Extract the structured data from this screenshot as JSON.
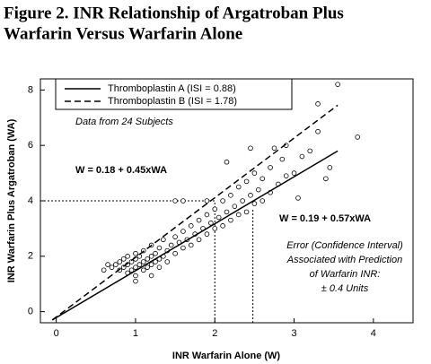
{
  "chart_data": {
    "type": "scatter",
    "title_lines": [
      "Figure 2. INR Relationship of Argatroban Plus",
      "Warfarin Versus Warfarin Alone"
    ],
    "x_label": "INR Warfarin Alone (W)",
    "y_label": "INR Warfarin Plus Argatroban (WA)",
    "xlim": [
      -0.2,
      4.5
    ],
    "ylim": [
      -0.4,
      8.4
    ],
    "xticks": [
      0,
      1,
      2,
      3,
      4
    ],
    "yticks": [
      0,
      2,
      4,
      6,
      8
    ],
    "series": [
      {
        "name": "Thromboplastin A (ISI = 0.88)",
        "style": "solid",
        "color": "#000000",
        "x": [
          -0.05,
          3.55
        ],
        "values": [
          -0.3,
          5.8
        ]
      },
      {
        "name": "Thromboplastin B (ISI = 1.78)",
        "style": "dashed",
        "color": "#000000",
        "x": [
          -0.05,
          3.55
        ],
        "values": [
          -0.3,
          7.45
        ]
      }
    ],
    "reference_lines": [
      {
        "x": [
          -0.2,
          2.0
        ],
        "values": [
          4,
          4
        ]
      },
      {
        "x": [
          2.0,
          2.0
        ],
        "values": [
          -0.4,
          4
        ]
      },
      {
        "x": [
          2.48,
          2.48
        ],
        "values": [
          -0.4,
          3.7
        ]
      }
    ],
    "scatter": {
      "x": [
        0.7,
        0.75,
        0.8,
        0.8,
        0.85,
        0.85,
        0.9,
        0.9,
        0.9,
        0.95,
        0.95,
        1.0,
        1.0,
        1.0,
        1.0,
        1.05,
        1.05,
        1.1,
        1.1,
        1.1,
        1.15,
        1.15,
        1.2,
        1.2,
        1.2,
        1.25,
        1.25,
        1.3,
        1.3,
        1.3,
        1.35,
        1.35,
        1.4,
        1.4,
        1.45,
        1.5,
        1.5,
        1.55,
        1.6,
        1.6,
        1.65,
        1.7,
        1.7,
        1.75,
        1.8,
        1.8,
        1.85,
        1.9,
        1.9,
        1.95,
        2.0,
        2.0,
        2.05,
        2.1,
        2.1,
        2.15,
        2.2,
        2.2,
        2.25,
        2.3,
        2.3,
        2.35,
        2.4,
        2.4,
        2.45,
        2.5,
        2.5,
        2.55,
        2.6,
        2.6,
        2.7,
        2.7,
        2.75,
        2.8,
        2.85,
        2.9,
        2.9,
        3.0,
        3.05,
        3.1,
        3.2,
        3.3,
        3.3,
        3.4,
        3.45,
        3.55,
        3.8,
        0.6,
        0.65,
        1.9,
        1.5,
        1.6,
        2.15,
        2.45,
        1.0,
        1.2
      ],
      "values": [
        1.6,
        1.7,
        1.5,
        1.8,
        1.6,
        1.9,
        1.4,
        1.7,
        2.0,
        1.5,
        1.8,
        1.6,
        1.9,
        2.1,
        1.3,
        1.7,
        2.0,
        1.5,
        1.8,
        2.2,
        1.6,
        1.9,
        1.7,
        2.0,
        2.4,
        1.8,
        2.1,
        1.9,
        2.3,
        1.6,
        2.0,
        2.6,
        2.2,
        1.8,
        2.4,
        2.1,
        2.7,
        2.5,
        2.3,
        2.9,
        2.6,
        3.1,
        2.4,
        2.8,
        3.3,
        2.6,
        3.0,
        3.5,
        2.8,
        3.2,
        3.7,
        3.0,
        3.4,
        4.0,
        3.1,
        3.6,
        4.2,
        3.3,
        3.8,
        4.5,
        3.5,
        4.0,
        4.7,
        3.6,
        4.2,
        5.0,
        3.9,
        4.4,
        4.8,
        4.0,
        5.2,
        4.3,
        5.9,
        4.6,
        5.5,
        4.9,
        6.0,
        5.0,
        4.1,
        5.6,
        5.8,
        6.5,
        7.5,
        4.8,
        5.2,
        8.2,
        6.3,
        1.5,
        1.7,
        4.0,
        4.0,
        4.0,
        5.4,
        5.9,
        1.1,
        1.3
      ]
    },
    "annotations": [
      "Data from 24 Subjects",
      "W = 0.18 + 0.45xWA",
      "W = 0.19 + 0.57xWA",
      "Error (Confidence Interval)",
      "Associated with Prediction",
      "of Warfarin INR:",
      "± 0.4 Units"
    ]
  }
}
